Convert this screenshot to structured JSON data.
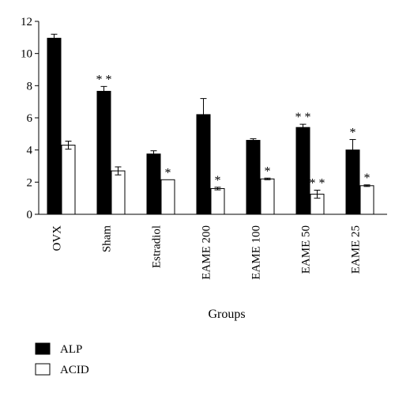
{
  "chart_data": {
    "type": "bar",
    "xlabel": "Groups",
    "ylabel": "",
    "ylim": [
      0,
      12
    ],
    "yticks": [
      0,
      2,
      4,
      6,
      8,
      10,
      12
    ],
    "categories": [
      "OVX",
      "Sham",
      "Estradiol",
      "EAME 200",
      "EAME 100",
      "EAME 50",
      "EAME 25"
    ],
    "series": [
      {
        "name": "ALP",
        "color": "#000000",
        "values": [
          10.95,
          7.65,
          3.75,
          6.2,
          4.6,
          5.4,
          4.0
        ],
        "errors": [
          0.25,
          0.3,
          0.2,
          1.0,
          0.1,
          0.2,
          0.65
        ],
        "significance": [
          "",
          "**",
          "",
          "",
          "",
          "**",
          "*"
        ]
      },
      {
        "name": "ACID",
        "color": "#ffffff",
        "values": [
          4.3,
          2.7,
          2.15,
          1.6,
          2.2,
          1.25,
          1.78
        ],
        "errors": [
          0.25,
          0.25,
          0.0,
          0.08,
          0.05,
          0.25,
          0.05
        ],
        "significance": [
          "",
          "",
          "*",
          "*",
          "*",
          "**",
          "*"
        ]
      }
    ],
    "legend": "bottom-left",
    "grid": false
  }
}
